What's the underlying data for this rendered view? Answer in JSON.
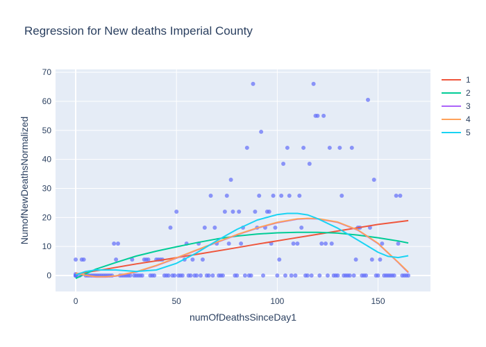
{
  "chart_data": {
    "type": "scatter",
    "title": "Regression for New deaths Imperial County",
    "xlabel": "numOfDeathsSinceDay1",
    "ylabel": "NumofNewDeathsNormalized",
    "xlim": [
      -10,
      176
    ],
    "ylim": [
      -5.5,
      71
    ],
    "xticks": [
      0,
      50,
      100,
      150
    ],
    "yticks": [
      0,
      10,
      20,
      30,
      40,
      50,
      60,
      70
    ],
    "grid": true,
    "legend_position": "right",
    "colors": {
      "background": "#e5ecf6",
      "points": "#636efa",
      "series": [
        "#ef553b",
        "#00cc96",
        "#ab63fa",
        "#ffa15a",
        "#19d3f3"
      ]
    },
    "points": [
      [
        0,
        0
      ],
      [
        0,
        0
      ],
      [
        0,
        0.5
      ],
      [
        0,
        0
      ],
      [
        0,
        0
      ],
      [
        0,
        0
      ],
      [
        0,
        5.5
      ],
      [
        0,
        0
      ],
      [
        0,
        0
      ],
      [
        0,
        0
      ],
      [
        0,
        0
      ],
      [
        0,
        0
      ],
      [
        0,
        0
      ],
      [
        2,
        0
      ],
      [
        3,
        5.5
      ],
      [
        4,
        5.5
      ],
      [
        5,
        0
      ],
      [
        6,
        0
      ],
      [
        7,
        0
      ],
      [
        8,
        0
      ],
      [
        9,
        0
      ],
      [
        10,
        0
      ],
      [
        11,
        0
      ],
      [
        12,
        0
      ],
      [
        13,
        0
      ],
      [
        14,
        0
      ],
      [
        15,
        0
      ],
      [
        16,
        0
      ],
      [
        17,
        0
      ],
      [
        18,
        0
      ],
      [
        19,
        11
      ],
      [
        20,
        5.5
      ],
      [
        21,
        11
      ],
      [
        22,
        0
      ],
      [
        23,
        0
      ],
      [
        24,
        0
      ],
      [
        25,
        0
      ],
      [
        26,
        0
      ],
      [
        27,
        0
      ],
      [
        28,
        5.5
      ],
      [
        29,
        0
      ],
      [
        30,
        0
      ],
      [
        31,
        0
      ],
      [
        32,
        0
      ],
      [
        33,
        0
      ],
      [
        34,
        5.5
      ],
      [
        35,
        5.5
      ],
      [
        36,
        5.5
      ],
      [
        37,
        0
      ],
      [
        38,
        0
      ],
      [
        39,
        0
      ],
      [
        40,
        5.5
      ],
      [
        41,
        5.5
      ],
      [
        42,
        5.5
      ],
      [
        43,
        5.5
      ],
      [
        44,
        0
      ],
      [
        45,
        0
      ],
      [
        46,
        0
      ],
      [
        47,
        16.5
      ],
      [
        48,
        0
      ],
      [
        49,
        0
      ],
      [
        50,
        22
      ],
      [
        51,
        0
      ],
      [
        52,
        0
      ],
      [
        53,
        0
      ],
      [
        54,
        5.5
      ],
      [
        55,
        11
      ],
      [
        56,
        0
      ],
      [
        57,
        0
      ],
      [
        58,
        5.5
      ],
      [
        59,
        0
      ],
      [
        60,
        0
      ],
      [
        61,
        11
      ],
      [
        62,
        0
      ],
      [
        63,
        5.5
      ],
      [
        64,
        16.5
      ],
      [
        65,
        0
      ],
      [
        66,
        0
      ],
      [
        67,
        27.5
      ],
      [
        68,
        0
      ],
      [
        69,
        16.5
      ],
      [
        70,
        11
      ],
      [
        71,
        0
      ],
      [
        72,
        0
      ],
      [
        73,
        0
      ],
      [
        74,
        22
      ],
      [
        75,
        27.5
      ],
      [
        76,
        11
      ],
      [
        77,
        33
      ],
      [
        78,
        22
      ],
      [
        79,
        0
      ],
      [
        80,
        0
      ],
      [
        81,
        22
      ],
      [
        82,
        11
      ],
      [
        83,
        16.5
      ],
      [
        84,
        0
      ],
      [
        85,
        44
      ],
      [
        86,
        0
      ],
      [
        87,
        0
      ],
      [
        88,
        66
      ],
      [
        89,
        22
      ],
      [
        90,
        16.5
      ],
      [
        91,
        27.5
      ],
      [
        92,
        49.5
      ],
      [
        93,
        0
      ],
      [
        94,
        16.5
      ],
      [
        95,
        22
      ],
      [
        96,
        22
      ],
      [
        97,
        11
      ],
      [
        98,
        27.5
      ],
      [
        99,
        16.5
      ],
      [
        100,
        0
      ],
      [
        101,
        5.5
      ],
      [
        102,
        27.5
      ],
      [
        103,
        38.5
      ],
      [
        104,
        0
      ],
      [
        105,
        44
      ],
      [
        106,
        27.5
      ],
      [
        107,
        0
      ],
      [
        108,
        11
      ],
      [
        109,
        0
      ],
      [
        110,
        11
      ],
      [
        111,
        27.5
      ],
      [
        112,
        16.5
      ],
      [
        113,
        44
      ],
      [
        114,
        0
      ],
      [
        115,
        0
      ],
      [
        116,
        38.5
      ],
      [
        117,
        0
      ],
      [
        118,
        66
      ],
      [
        119,
        55
      ],
      [
        120,
        55
      ],
      [
        121,
        0
      ],
      [
        122,
        11
      ],
      [
        123,
        55
      ],
      [
        124,
        11
      ],
      [
        125,
        0
      ],
      [
        126,
        44
      ],
      [
        127,
        11
      ],
      [
        128,
        0
      ],
      [
        129,
        0
      ],
      [
        130,
        0
      ],
      [
        131,
        44
      ],
      [
        132,
        27.5
      ],
      [
        133,
        0
      ],
      [
        134,
        0
      ],
      [
        135,
        0
      ],
      [
        136,
        0
      ],
      [
        137,
        44
      ],
      [
        138,
        0
      ],
      [
        139,
        5.5
      ],
      [
        140,
        16.5
      ],
      [
        141,
        16.5
      ],
      [
        142,
        0
      ],
      [
        143,
        0
      ],
      [
        144,
        0
      ],
      [
        145,
        60.5
      ],
      [
        146,
        16.5
      ],
      [
        147,
        5.5
      ],
      [
        148,
        33
      ],
      [
        149,
        0
      ],
      [
        150,
        0
      ],
      [
        151,
        5.5
      ],
      [
        152,
        11
      ],
      [
        153,
        0
      ],
      [
        154,
        0
      ],
      [
        155,
        0
      ],
      [
        156,
        0
      ],
      [
        157,
        0
      ],
      [
        158,
        0
      ],
      [
        159,
        27.5
      ],
      [
        160,
        11
      ],
      [
        161,
        27.5
      ],
      [
        162,
        0
      ],
      [
        163,
        0
      ],
      [
        164,
        0
      ],
      [
        165,
        0
      ]
    ],
    "series": [
      {
        "name": "1",
        "x": [
          0,
          15,
          30,
          45,
          60,
          75,
          90,
          105,
          120,
          135,
          150,
          165
        ],
        "y": [
          0.5,
          2.2,
          4.0,
          5.6,
          7.3,
          9.0,
          10.8,
          12.5,
          14.2,
          15.9,
          17.6,
          18.9
        ]
      },
      {
        "name": "2",
        "x": [
          0,
          5,
          10,
          20,
          30,
          40,
          50,
          60,
          70,
          80,
          90,
          100,
          110,
          120,
          130,
          140,
          150,
          160,
          165
        ],
        "y": [
          -1.0,
          0.6,
          2.2,
          4.5,
          6.7,
          8.4,
          9.9,
          11.3,
          12.6,
          13.6,
          14.3,
          14.7,
          14.9,
          14.9,
          14.6,
          13.9,
          13.0,
          11.9,
          11.2
        ]
      },
      {
        "name": "3",
        "x": [
          0,
          5,
          10,
          15,
          20,
          30,
          40,
          50,
          60,
          70,
          80,
          90,
          100,
          110,
          115,
          120,
          130,
          140,
          150,
          160,
          165
        ],
        "y": [
          0.8,
          0.0,
          -0.5,
          -0.5,
          -0.2,
          1.2,
          3.4,
          6.0,
          8.7,
          11.4,
          14.0,
          16.3,
          18.2,
          19.4,
          19.6,
          19.5,
          18.3,
          15.6,
          11.0,
          4.5,
          1.0
        ]
      },
      {
        "name": "4",
        "x": [
          0,
          5,
          10,
          15,
          20,
          30,
          40,
          50,
          60,
          70,
          80,
          90,
          100,
          110,
          115,
          120,
          130,
          140,
          150,
          160,
          165
        ],
        "y": [
          0.9,
          0.1,
          -0.4,
          -0.4,
          -0.1,
          1.3,
          3.5,
          6.1,
          8.8,
          11.5,
          14.1,
          16.4,
          18.3,
          19.5,
          19.7,
          19.6,
          18.4,
          15.7,
          11.1,
          4.6,
          1.2
        ]
      },
      {
        "name": "5",
        "x": [
          0,
          5,
          10,
          20,
          30,
          40,
          50,
          60,
          70,
          80,
          90,
          100,
          105,
          110,
          115,
          120,
          130,
          140,
          150,
          155,
          160,
          165
        ],
        "y": [
          0.2,
          1.4,
          1.9,
          1.9,
          1.4,
          1.9,
          4.2,
          7.8,
          12.0,
          15.9,
          19.1,
          21.0,
          21.4,
          21.4,
          20.9,
          19.6,
          16.3,
          12.2,
          8.0,
          6.6,
          6.2,
          6.8
        ]
      }
    ]
  }
}
